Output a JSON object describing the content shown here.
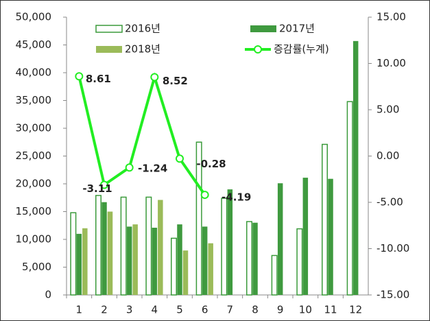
{
  "chart_data": {
    "type": "bar_line",
    "categories": [
      "1",
      "2",
      "3",
      "4",
      "5",
      "6",
      "7",
      "8",
      "9",
      "10",
      "11",
      "12"
    ],
    "series": [
      {
        "name": "2016년",
        "color": "#3a9a3a",
        "fill": "#ffffff",
        "values": [
          14800,
          17900,
          17600,
          17600,
          10200,
          27500,
          17400,
          13200,
          7100,
          11900,
          27100,
          34800
        ]
      },
      {
        "name": "2017년",
        "color": "#3f9a3f",
        "values": [
          11000,
          16700,
          12300,
          12100,
          12700,
          12300,
          19000,
          13000,
          20100,
          21100,
          20900,
          45700
        ]
      },
      {
        "name": "2018년",
        "color": "#9bbb59",
        "values": [
          12000,
          15000,
          12700,
          17100,
          8000,
          9300,
          null,
          null,
          null,
          null,
          null,
          null
        ]
      },
      {
        "name": "증감률(누계)",
        "color": "#22ee22",
        "axis": "y2",
        "values": [
          8.61,
          -3.11,
          -1.24,
          8.52,
          -0.28,
          -4.19,
          null,
          null,
          null,
          null,
          null,
          null
        ]
      }
    ],
    "ylim": [
      0,
      50000
    ],
    "yticks": [
      0,
      {
        "value": 5000,
        "label": "5,000"
      },
      {
        "value": 10000,
        "label": "10,000"
      },
      {
        "value": 15000,
        "label": "15,000"
      },
      {
        "value": 20000,
        "label": "20,000"
      },
      {
        "value": 25000,
        "label": "25,000"
      },
      {
        "value": 30000,
        "label": "30,000"
      },
      {
        "value": 35000,
        "label": "35,000"
      },
      {
        "value": 40000,
        "label": "40,000"
      },
      {
        "value": 45000,
        "label": "45,000"
      },
      {
        "value": 50000,
        "label": "50,000"
      }
    ],
    "y2lim": [
      -15,
      15
    ],
    "y2ticks": [
      {
        "value": -15,
        "label": "-15.00"
      },
      {
        "value": -10,
        "label": "-10.00"
      },
      {
        "value": -5,
        "label": "-5.00"
      },
      {
        "value": 0,
        "label": "0.00"
      },
      {
        "value": 5,
        "label": "5.00"
      },
      {
        "value": 10,
        "label": "10.00"
      },
      {
        "value": 15,
        "label": "15.00"
      }
    ]
  }
}
